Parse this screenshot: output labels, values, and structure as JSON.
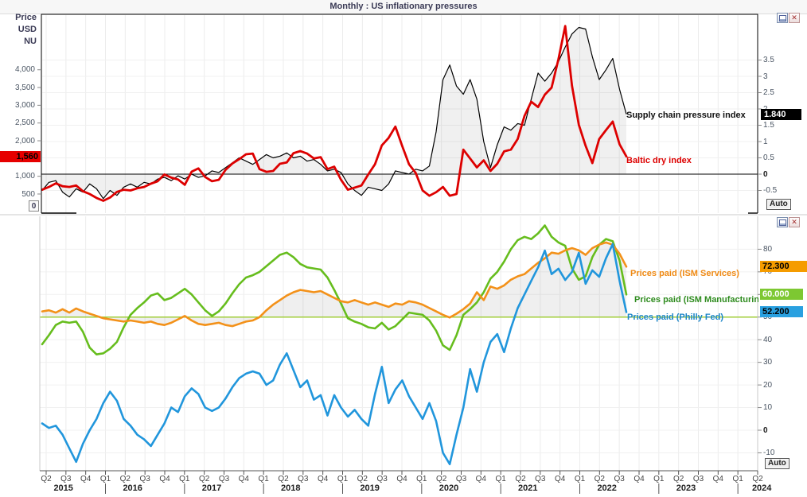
{
  "window": {
    "title": "Monthly : US inflationary pressures",
    "close_glyph": "✕"
  },
  "badges": {
    "baltic": "1,560",
    "supply_chain": "1.840",
    "ism_services": "72.300",
    "ism_manufacturing": "60.000",
    "philly_fed": "52.200"
  },
  "panels": {
    "top": {
      "left_axis": {
        "units": [
          "Price",
          "USD",
          "NU"
        ],
        "zero_label": "0",
        "ticks": [
          {
            "label": "4,000",
            "value": 4000
          },
          {
            "label": "3,500",
            "value": 3500
          },
          {
            "label": "3,000",
            "value": 3000
          },
          {
            "label": "2,500",
            "value": 2500
          },
          {
            "label": "2,000",
            "value": 2000
          },
          {
            "label": "1,000",
            "value": 1000
          },
          {
            "label": "500",
            "value": 500
          }
        ]
      },
      "right_axis": {
        "auto_label": "Auto",
        "ticks": [
          {
            "label": "3.5",
            "value": 3.5
          },
          {
            "label": "3",
            "value": 3
          },
          {
            "label": "2.5",
            "value": 2.5
          },
          {
            "label": "2",
            "value": 2
          },
          {
            "label": "1.5",
            "value": 1.5
          },
          {
            "label": "1",
            "value": 1
          },
          {
            "label": "0.5",
            "value": 0.5
          },
          {
            "label": "0",
            "value": 0
          },
          {
            "label": "-0.5",
            "value": -0.5
          }
        ]
      }
    },
    "bottom": {
      "right_axis": {
        "auto_label": "Auto",
        "ticks": [
          {
            "label": "80",
            "value": 80
          },
          {
            "label": "70",
            "value": 70
          },
          {
            "label": "60",
            "value": 60
          },
          {
            "label": "50",
            "value": 50
          },
          {
            "label": "40",
            "value": 40
          },
          {
            "label": "30",
            "value": 30
          },
          {
            "label": "20",
            "value": 20
          },
          {
            "label": "10",
            "value": 10
          },
          {
            "label": "0",
            "value": 0
          },
          {
            "label": "-10",
            "value": -10
          }
        ]
      }
    }
  },
  "x_axis": {
    "quarter_labels": [
      "Q2",
      "Q3",
      "Q4",
      "Q1",
      "Q2",
      "Q3",
      "Q4",
      "Q1",
      "Q2",
      "Q3",
      "Q4",
      "Q1",
      "Q2",
      "Q3",
      "Q4",
      "Q1",
      "Q2",
      "Q3",
      "Q4",
      "Q1",
      "Q2",
      "Q3",
      "Q4",
      "Q1",
      "Q2",
      "Q3",
      "Q4",
      "Q1",
      "Q2",
      "Q3",
      "Q4",
      "Q1",
      "Q2",
      "Q3",
      "Q4",
      "Q1",
      "Q2"
    ],
    "years": [
      {
        "label": "2015",
        "quarters": 3
      },
      {
        "label": "2016",
        "quarters": 4
      },
      {
        "label": "2017",
        "quarters": 4
      },
      {
        "label": "2018",
        "quarters": 4
      },
      {
        "label": "2019",
        "quarters": 4
      },
      {
        "label": "2020",
        "quarters": 4
      },
      {
        "label": "2021",
        "quarters": 4
      },
      {
        "label": "2022",
        "quarters": 4
      },
      {
        "label": "2023",
        "quarters": 4
      },
      {
        "label": "2024",
        "quarters": 2
      }
    ]
  },
  "chart_data": [
    {
      "type": "line",
      "panel": "top",
      "title": "Monthly : US inflationary pressures",
      "x_start": "2015-05",
      "x_end": "2022-07",
      "x_interval": "monthly",
      "grid": true,
      "baseline_right_axis": 0,
      "right_axis_range": [
        -0.75,
        4.6
      ],
      "left_axis_range": [
        0,
        5300
      ],
      "series": [
        {
          "name": "Supply chain pressure index",
          "color": "#000000",
          "axis": "right",
          "fill_to_baseline": true,
          "last_value": 1.84,
          "values": [
            -0.5,
            -0.25,
            -0.2,
            -0.55,
            -0.7,
            -0.45,
            -0.55,
            -0.3,
            -0.45,
            -0.75,
            -0.5,
            -0.65,
            -0.4,
            -0.3,
            -0.4,
            -0.25,
            -0.3,
            -0.15,
            -0.1,
            -0.2,
            -0.05,
            -0.15,
            0.0,
            -0.1,
            -0.05,
            0.1,
            0.05,
            0.2,
            0.35,
            0.5,
            0.4,
            0.3,
            0.45,
            0.6,
            0.5,
            0.55,
            0.65,
            0.5,
            0.55,
            0.4,
            0.45,
            0.3,
            0.1,
            0.15,
            0.05,
            -0.3,
            -0.5,
            -0.65,
            -0.4,
            -0.45,
            -0.5,
            -0.3,
            0.1,
            0.05,
            0.0,
            0.15,
            0.1,
            0.25,
            1.3,
            2.9,
            3.35,
            2.7,
            2.45,
            2.9,
            2.3,
            1.0,
            0.2,
            0.9,
            1.45,
            1.35,
            1.55,
            1.5,
            2.3,
            3.1,
            2.85,
            3.1,
            3.45,
            3.9,
            4.3,
            4.5,
            4.45,
            3.6,
            2.9,
            3.2,
            3.55,
            2.6,
            1.84
          ]
        },
        {
          "name": "Baltic dry index",
          "color": "#dd0000",
          "axis": "left",
          "fill_to_baseline": false,
          "last_value": 1560,
          "values": [
            620,
            700,
            800,
            720,
            700,
            740,
            580,
            500,
            390,
            310,
            400,
            560,
            620,
            600,
            660,
            700,
            790,
            860,
            1050,
            960,
            910,
            760,
            1130,
            1220,
            980,
            860,
            900,
            1180,
            1360,
            1480,
            1620,
            1640,
            1200,
            1125,
            1150,
            1350,
            1390,
            1650,
            1710,
            1640,
            1500,
            1540,
            1200,
            1270,
            900,
            620,
            680,
            740,
            1050,
            1340,
            1870,
            2080,
            2400,
            1850,
            1340,
            1090,
            600,
            450,
            550,
            700,
            450,
            500,
            1750,
            1500,
            1250,
            1450,
            1150,
            1350,
            1700,
            1750,
            2050,
            2700,
            3100,
            2950,
            3300,
            3500,
            4300,
            5230,
            3550,
            2450,
            1860,
            1370,
            2050,
            2300,
            2540,
            1900,
            1560
          ]
        }
      ]
    },
    {
      "type": "line",
      "panel": "bottom",
      "x_start": "2015-05",
      "x_end": "2022-07",
      "x_interval": "monthly",
      "grid": true,
      "hline": 50,
      "hline_color": "#a2ce39",
      "ylim": [
        -18,
        95
      ],
      "series": [
        {
          "name": "Prices paid (ISM Services)",
          "color": "#f39119",
          "fill_to_hline": true,
          "last_value": 72.3,
          "values": [
            52.5,
            53,
            52,
            53.5,
            52,
            53.8,
            52.5,
            51.5,
            50.5,
            49.5,
            49,
            48.5,
            48,
            48.5,
            48,
            47.5,
            48,
            47,
            46.5,
            47.5,
            49,
            50.5,
            48.5,
            47,
            46.5,
            47,
            47.5,
            46.5,
            46,
            47,
            48,
            48.5,
            50,
            53,
            55.5,
            57.5,
            59.5,
            61,
            62,
            61.5,
            61,
            61.5,
            60,
            58.5,
            57,
            56.5,
            57.5,
            56.5,
            55.5,
            56.5,
            55.5,
            54.5,
            56,
            55.5,
            57,
            56.5,
            55.5,
            54,
            52.5,
            51,
            49.8,
            51.5,
            53.5,
            56,
            61,
            57.5,
            63.5,
            62.5,
            64,
            66.5,
            68,
            69,
            71.5,
            74,
            76,
            78.5,
            78,
            79.5,
            80.5,
            79.5,
            77.5,
            80.5,
            82,
            83,
            82,
            78,
            72.3
          ]
        },
        {
          "name": "Prices paid (ISM Manufacturing)",
          "color": "#66bd1d",
          "fill_to_hline": false,
          "last_value": 60.0,
          "values": [
            38,
            42,
            46.5,
            48,
            47.5,
            48,
            43.5,
            36.5,
            33.5,
            34,
            36,
            39,
            45.5,
            51,
            54,
            56.5,
            59.5,
            60.5,
            57.5,
            58.5,
            60.5,
            62.5,
            60,
            56.5,
            53,
            50.5,
            52.5,
            56,
            60.5,
            64.5,
            67.5,
            68.5,
            70,
            72.5,
            75,
            77.5,
            78.5,
            76.5,
            73.5,
            72,
            71.5,
            71,
            67.5,
            62,
            56,
            49.5,
            48,
            47,
            45.5,
            45,
            47.5,
            44.5,
            46,
            49,
            52,
            51.5,
            51,
            48.5,
            44,
            37.5,
            35.5,
            42,
            51,
            53.5,
            56.5,
            61,
            67,
            70,
            74.5,
            80,
            84,
            85.5,
            84.5,
            87,
            90.5,
            85.5,
            83,
            81.5,
            71.5,
            66.5,
            68,
            76.5,
            82,
            84.5,
            83.5,
            75,
            60
          ]
        },
        {
          "name": "Prices paid (Philly Fed)",
          "color": "#2196dc",
          "fill_to_hline": false,
          "last_value": 52.2,
          "values": [
            3,
            1,
            2,
            -2,
            -8,
            -14,
            -6,
            0,
            5,
            12,
            17,
            13,
            5,
            2,
            -2,
            -4,
            -7,
            -2,
            3,
            10,
            8,
            15,
            18.5,
            16,
            10,
            8.5,
            10,
            14,
            19,
            23,
            25,
            26,
            25,
            20,
            22,
            29,
            34,
            26.5,
            19,
            22,
            13.5,
            15.5,
            6.5,
            15.5,
            10,
            6,
            9,
            5,
            2,
            16,
            28,
            12,
            18,
            22,
            15,
            10,
            5,
            12,
            4,
            -10,
            -15,
            -2,
            10,
            27,
            17,
            30,
            39,
            42.5,
            34.5,
            45,
            54,
            60,
            66,
            72,
            79.4,
            69,
            71.4,
            66.4,
            70,
            78.4,
            64.7,
            70.7,
            67.8,
            76,
            82.3,
            66,
            52.2
          ]
        }
      ]
    }
  ]
}
